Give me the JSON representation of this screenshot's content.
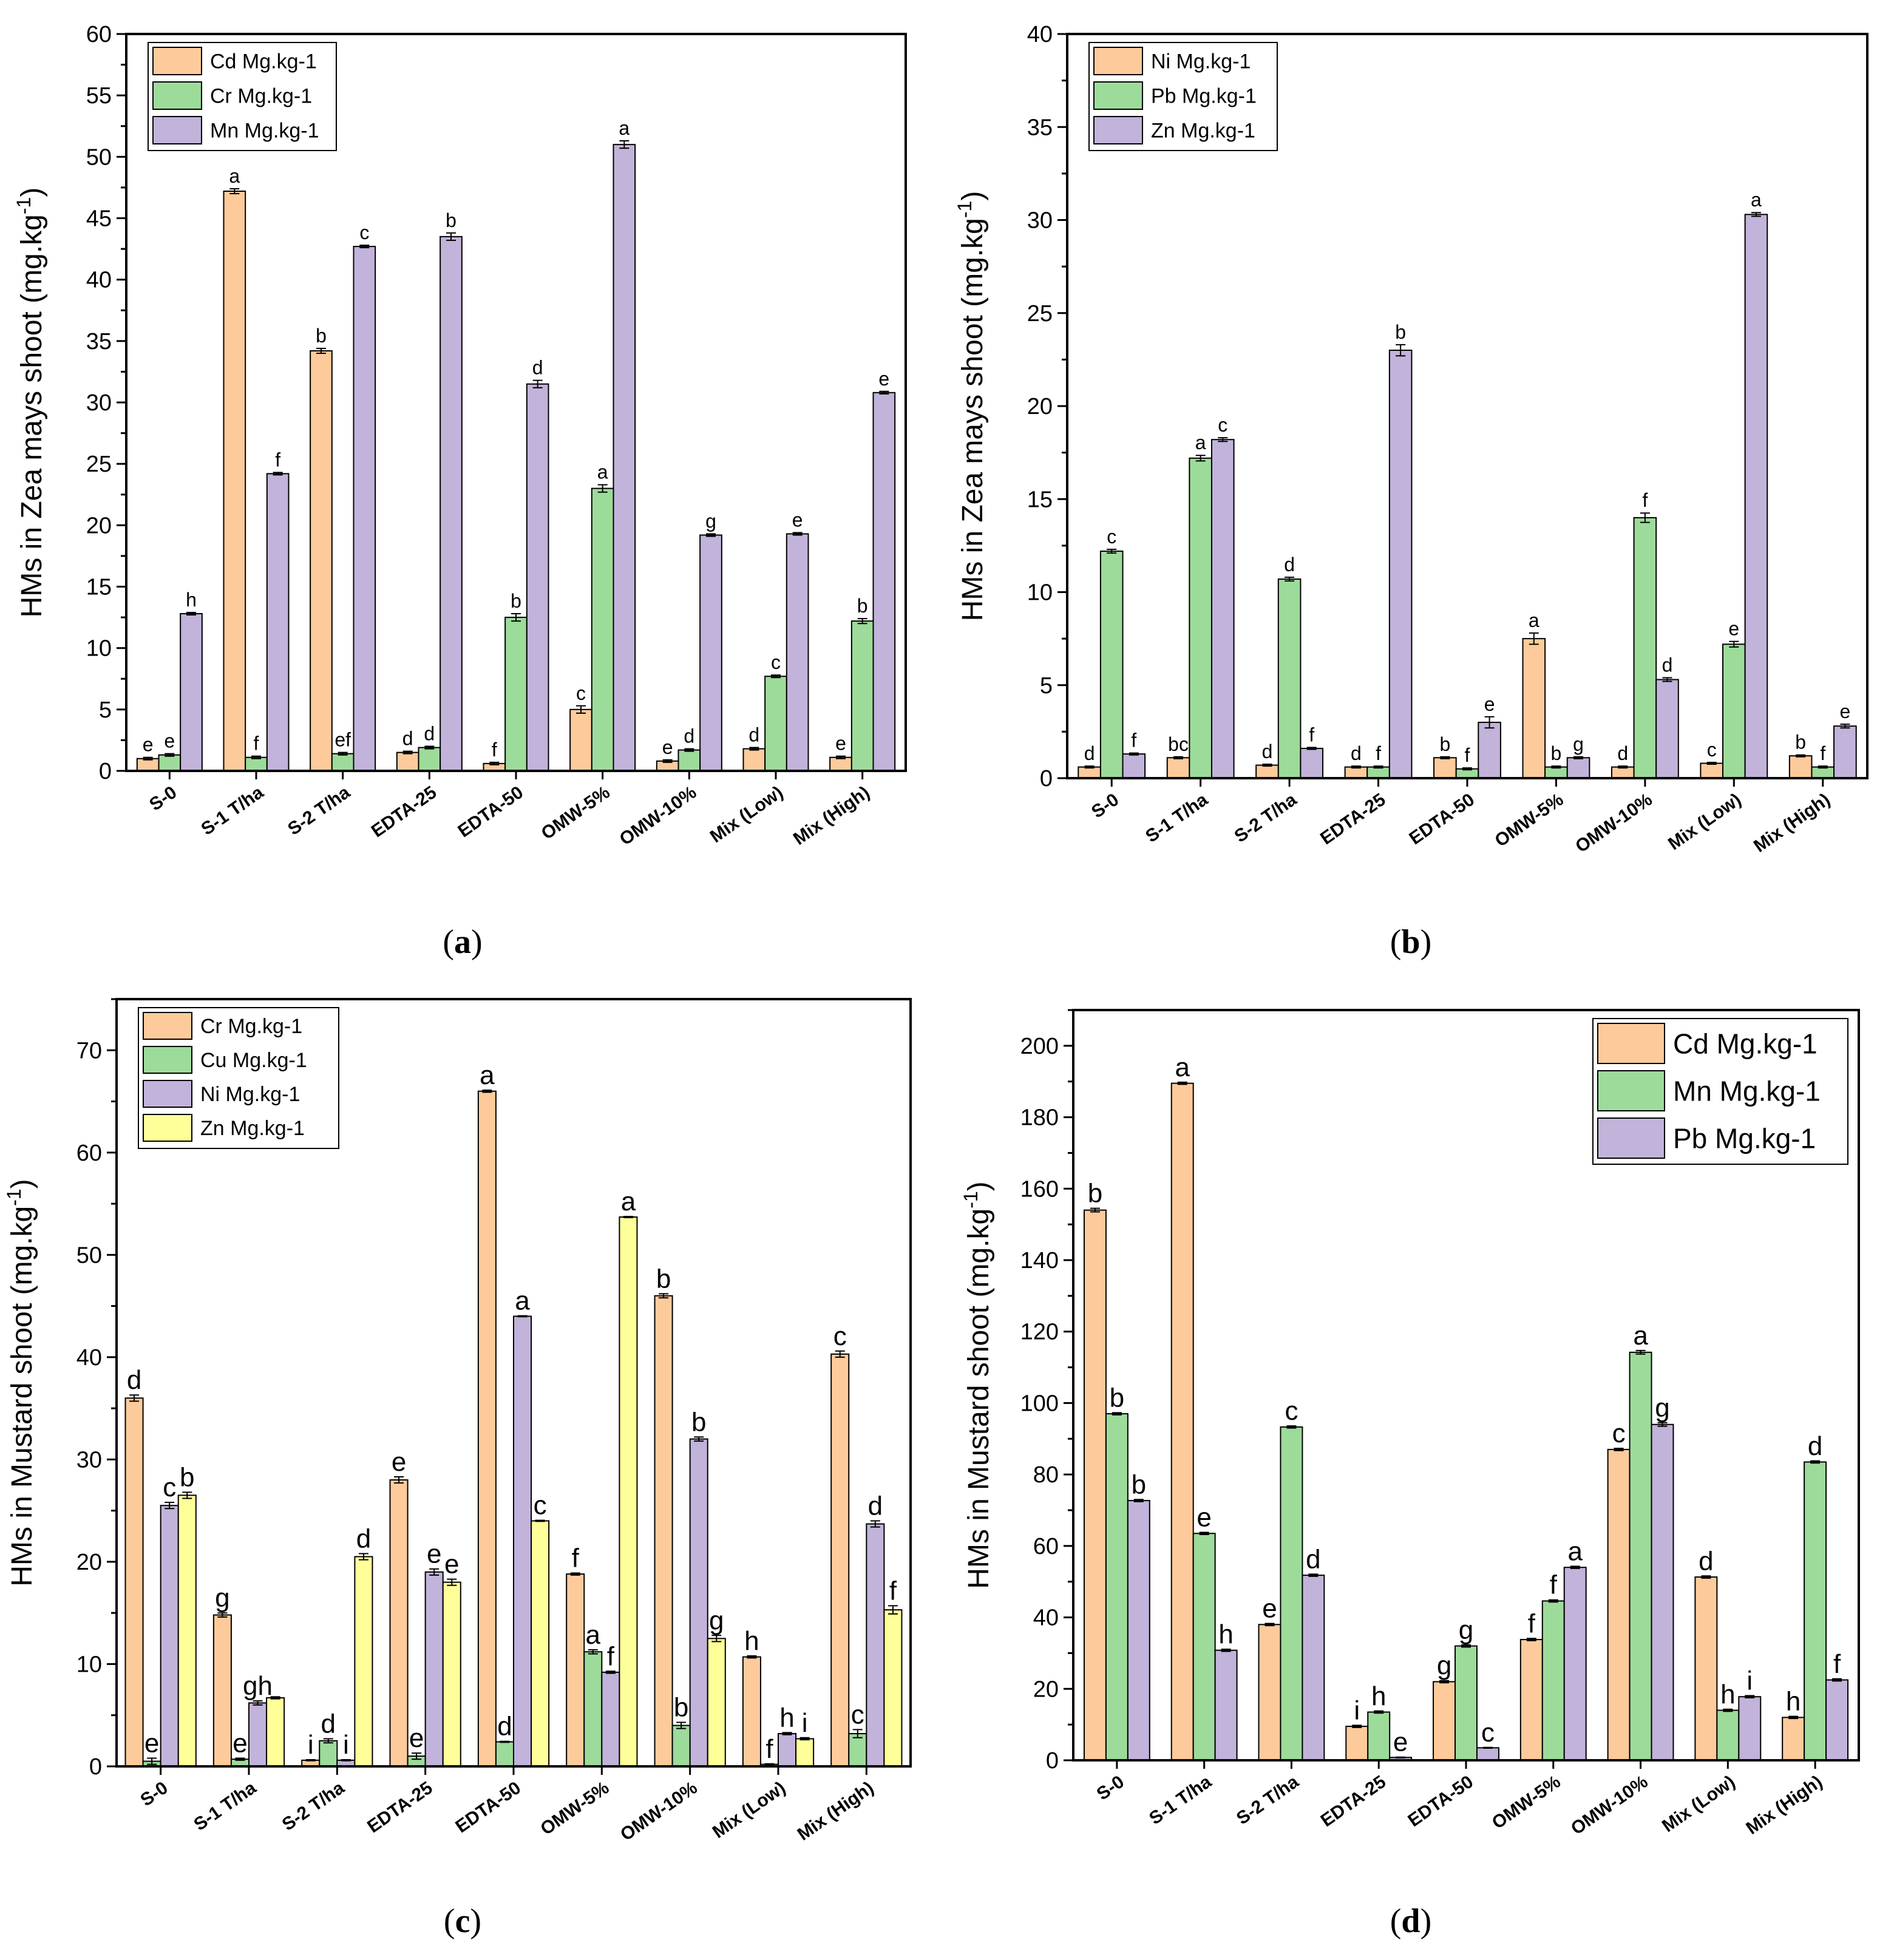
{
  "categories": [
    "S-0",
    "S-1 T/ha",
    "S-2 T/ha",
    "EDTA-25",
    "EDTA-50",
    "OMW-5%",
    "OMW-10%",
    "Mix (Low)",
    "Mix (High)"
  ],
  "captions": {
    "a": "a",
    "b": "b",
    "c": "c",
    "d": "d"
  },
  "colors": {
    "orange": "#FDCB9B",
    "green": "#9DDB9B",
    "purple": "#C2B3DA",
    "yellow": "#FFFF9A"
  },
  "chart_data": [
    {
      "id": "a",
      "type": "bar",
      "ylabel": "HMs in Zea mays shoot (mg.kg",
      "ylabel_sup": "-1",
      "ylabel_end": ")",
      "ylim": [
        0,
        60
      ],
      "ymajor": 5,
      "legend_position": "top-left",
      "categories": [
        "S-0",
        "S-1 T/ha",
        "S-2 T/ha",
        "EDTA-25",
        "EDTA-50",
        "OMW-5%",
        "OMW-10%",
        "Mix (Low)",
        "Mix (High)"
      ],
      "series": [
        {
          "name": "Cd Mg.kg-1",
          "color": "#FDCB9B",
          "values": [
            1.0,
            47.2,
            34.2,
            1.5,
            0.6,
            5.0,
            0.8,
            1.8,
            1.1
          ],
          "errors": [
            0.1,
            0.2,
            0.2,
            0.1,
            0.1,
            0.3,
            0.1,
            0.1,
            0.1
          ],
          "letters": [
            "e",
            "a",
            "b",
            "d",
            "f",
            "c",
            "e",
            "d",
            "e"
          ]
        },
        {
          "name": "Cr Mg.kg-1",
          "color": "#9DDB9B",
          "values": [
            1.3,
            1.1,
            1.4,
            1.9,
            12.5,
            23.0,
            1.7,
            7.7,
            12.2
          ],
          "errors": [
            0.1,
            0.1,
            0.1,
            0.1,
            0.3,
            0.3,
            0.1,
            0.1,
            0.2
          ],
          "letters": [
            "e",
            "f",
            "ef",
            "d",
            "b",
            "a",
            "d",
            "c",
            "b"
          ]
        },
        {
          "name": "Mn Mg.kg-1",
          "color": "#C2B3DA",
          "values": [
            12.8,
            24.2,
            42.7,
            43.5,
            31.5,
            51.0,
            19.2,
            19.3,
            30.8
          ],
          "errors": [
            0.1,
            0.1,
            0.1,
            0.3,
            0.3,
            0.3,
            0.1,
            0.1,
            0.1
          ],
          "letters": [
            "h",
            "f",
            "c",
            "b",
            "d",
            "a",
            "g",
            "e",
            "e"
          ]
        }
      ]
    },
    {
      "id": "b",
      "type": "bar",
      "ylabel": "HMs in Zea mays shoot (mg.kg",
      "ylabel_sup": "-1",
      "ylabel_end": ")",
      "ylim": [
        0,
        40
      ],
      "ymajor": 5,
      "legend_position": "top-left",
      "categories": [
        "S-0",
        "S-1 T/ha",
        "S-2 T/ha",
        "EDTA-25",
        "EDTA-50",
        "OMW-5%",
        "OMW-10%",
        "Mix (Low)",
        "Mix (High)"
      ],
      "series": [
        {
          "name": "Ni Mg.kg-1",
          "color": "#FDCB9B",
          "values": [
            0.6,
            1.1,
            0.7,
            0.6,
            1.1,
            7.5,
            0.6,
            0.8,
            1.2
          ],
          "errors": [
            0.05,
            0.05,
            0.05,
            0.05,
            0.05,
            0.3,
            0.05,
            0.05,
            0.05
          ],
          "letters": [
            "d",
            "bc",
            "d",
            "d",
            "b",
            "a",
            "d",
            "c",
            "b"
          ]
        },
        {
          "name": "Pb Mg.kg-1",
          "color": "#9DDB9B",
          "values": [
            12.2,
            17.2,
            10.7,
            0.6,
            0.5,
            0.6,
            14.0,
            7.2,
            0.6
          ],
          "errors": [
            0.1,
            0.15,
            0.1,
            0.05,
            0.05,
            0.05,
            0.25,
            0.15,
            0.05
          ],
          "letters": [
            "c",
            "a",
            "d",
            "f",
            "f",
            "b",
            "f",
            "e",
            "f"
          ]
        },
        {
          "name": "Zn Mg.kg-1",
          "color": "#C2B3DA",
          "values": [
            1.3,
            18.2,
            1.6,
            23.0,
            3.0,
            1.1,
            5.3,
            30.3,
            2.8
          ],
          "errors": [
            0.05,
            0.1,
            0.05,
            0.3,
            0.3,
            0.05,
            0.1,
            0.1,
            0.1
          ],
          "letters": [
            "f",
            "c",
            "f",
            "b",
            "e",
            "g",
            "d",
            "a",
            "e"
          ]
        }
      ]
    },
    {
      "id": "c",
      "type": "bar",
      "ylabel": "HMs in Mustard shoot (mg.kg",
      "ylabel_sup": "-1",
      "ylabel_end": ")",
      "ylim": [
        0,
        75
      ],
      "ymajor": 10,
      "legend_position": "top-left",
      "categories": [
        "S-0",
        "S-1 T/ha",
        "S-2 T/ha",
        "EDTA-25",
        "EDTA-50",
        "OMW-5%",
        "OMW-10%",
        "Mix (Low)",
        "Mix (High)"
      ],
      "series": [
        {
          "name": "Cr Mg.kg-1",
          "color": "#FDCB9B",
          "values": [
            36.0,
            14.8,
            0.6,
            28.0,
            66.0,
            18.8,
            46.0,
            10.7,
            40.3
          ],
          "errors": [
            0.3,
            0.2,
            0.05,
            0.3,
            0.1,
            0.1,
            0.2,
            0.1,
            0.3
          ],
          "letters": [
            "d",
            "g",
            "i",
            "e",
            "a",
            "f",
            "b",
            "h",
            "c"
          ]
        },
        {
          "name": "Cu Mg.kg-1",
          "color": "#9DDB9B",
          "values": [
            0.5,
            0.7,
            2.5,
            1.0,
            2.4,
            11.2,
            4.0,
            0.2,
            3.2
          ],
          "errors": [
            0.3,
            0.1,
            0.2,
            0.3,
            0.05,
            0.2,
            0.3,
            0.05,
            0.4
          ],
          "letters": [
            "e",
            "e",
            "d",
            "e",
            "d",
            "a",
            "b",
            "f",
            "c"
          ]
        },
        {
          "name": "Ni Mg.kg-1",
          "color": "#C2B3DA",
          "values": [
            25.5,
            6.2,
            0.6,
            19.0,
            44.0,
            9.2,
            32.0,
            3.2,
            23.7
          ],
          "errors": [
            0.3,
            0.2,
            0.05,
            0.3,
            0.05,
            0.1,
            0.2,
            0.1,
            0.3
          ],
          "letters": [
            "c",
            "gh",
            "i",
            "e",
            "a",
            "f",
            "b",
            "h",
            "d"
          ]
        },
        {
          "name": "Zn Mg.kg-1",
          "color": "#FFFF9A",
          "values": [
            26.5,
            6.7,
            20.5,
            18.0,
            24.0,
            53.7,
            12.5,
            2.7,
            15.3
          ],
          "errors": [
            0.3,
            0.1,
            0.3,
            0.3,
            0.05,
            0.05,
            0.3,
            0.1,
            0.4
          ],
          "letters": [
            "b",
            "",
            "d",
            "e",
            "c",
            "a",
            "g",
            "i",
            "f"
          ]
        }
      ]
    },
    {
      "id": "d",
      "type": "bar",
      "ylabel": "HMs in Mustard shoot (mg.kg",
      "ylabel_sup": "-1",
      "ylabel_end": ")",
      "ylim": [
        0,
        210
      ],
      "ymajor": 20,
      "legend_position": "top-right",
      "categories": [
        "S-0",
        "S-1 T/ha",
        "S-2 T/ha",
        "EDTA-25",
        "EDTA-50",
        "OMW-5%",
        "OMW-10%",
        "Mix (Low)",
        "Mix (High)"
      ],
      "series": [
        {
          "name": "Cd Mg.kg-1",
          "color": "#FDCB9B",
          "values": [
            154.0,
            189.5,
            38.0,
            9.5,
            22.0,
            33.8,
            87.0,
            51.3,
            12.0
          ],
          "errors": [
            0.5,
            0.3,
            0.3,
            0.3,
            0.3,
            0.3,
            0.3,
            0.3,
            0.3
          ],
          "letters": [
            "b",
            "a",
            "e",
            "i",
            "g",
            "f",
            "c",
            "d",
            "h"
          ]
        },
        {
          "name": "Mn Mg.kg-1",
          "color": "#9DDB9B",
          "values": [
            97.0,
            63.5,
            93.3,
            13.5,
            32.0,
            44.6,
            114.2,
            14.0,
            83.5
          ],
          "errors": [
            0.3,
            0.3,
            0.3,
            0.3,
            0.3,
            0.3,
            0.5,
            0.3,
            0.3
          ],
          "letters": [
            "b",
            "e",
            "c",
            "h",
            "g",
            "f",
            "a",
            "h",
            "d"
          ]
        },
        {
          "name": "Pb Mg.kg-1",
          "color": "#C2B3DA",
          "values": [
            72.7,
            30.8,
            51.8,
            0.8,
            3.5,
            54.0,
            94.0,
            17.8,
            22.5
          ],
          "errors": [
            0.3,
            0.3,
            0.3,
            0.1,
            0.1,
            0.3,
            0.5,
            0.3,
            0.3
          ],
          "letters": [
            "b",
            "h",
            "d",
            "e",
            "c",
            "a",
            "g",
            "i",
            "f"
          ]
        }
      ]
    }
  ]
}
